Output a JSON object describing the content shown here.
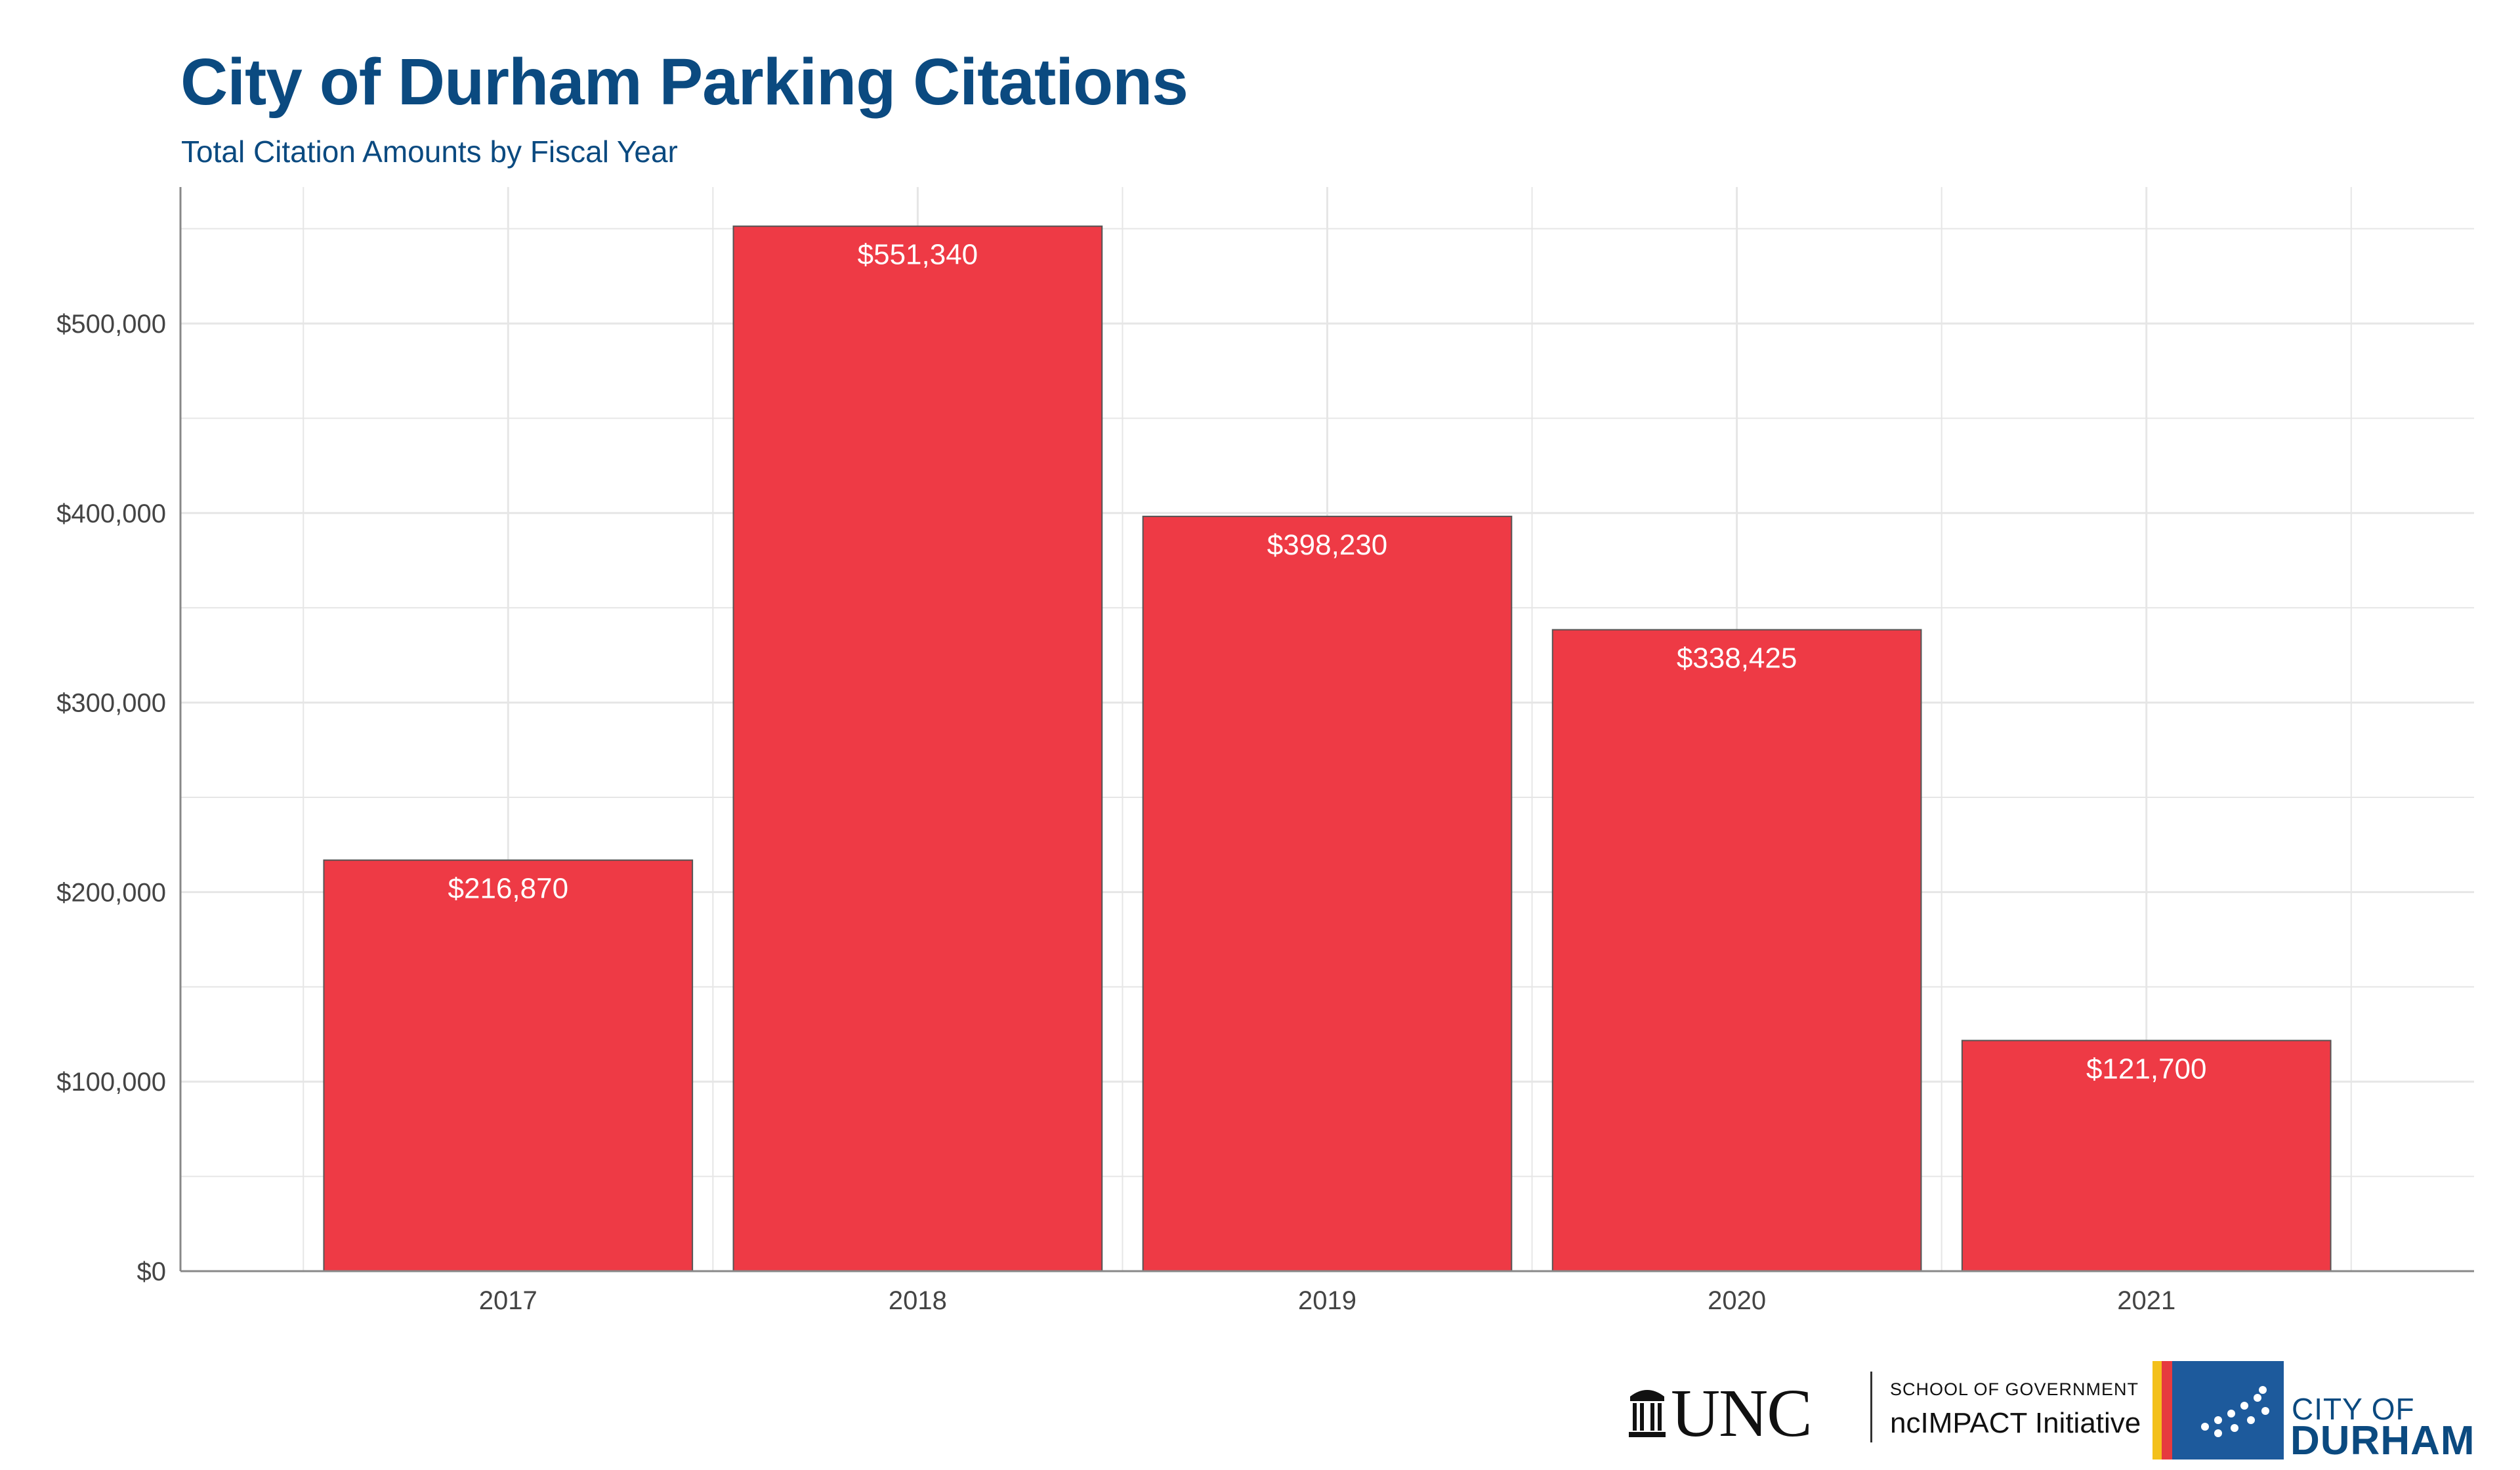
{
  "header": {
    "title": "City of Durham Parking Citations",
    "subtitle": "Total Citation Amounts by Fiscal Year"
  },
  "colors": {
    "title": "#0b4a80",
    "bar_fill": "#ee3a45",
    "bar_outline": "#555555",
    "grid": "#e6e6e6",
    "axis_text": "#444444",
    "data_label": "#ffffff"
  },
  "chart_data": {
    "type": "bar",
    "categories": [
      "2017",
      "2018",
      "2019",
      "2020",
      "2021"
    ],
    "values": [
      216870,
      551340,
      398230,
      338425,
      121700
    ],
    "data_labels": [
      "$216,870",
      "$551,340",
      "$398,230",
      "$338,425",
      "$121,700"
    ],
    "y_ticks": [
      0,
      100000,
      200000,
      300000,
      400000,
      500000
    ],
    "y_tick_labels": [
      "$0",
      "$100,000",
      "$200,000",
      "$300,000",
      "$400,000",
      "$500,000"
    ],
    "ylim": [
      0,
      572000
    ],
    "grid": true
  },
  "footer": {
    "unc_wordmark": "UNC",
    "unc_icon": "old-well-icon",
    "school_line": "SCHOOL OF GOVERNMENT",
    "initiative_line": "ncIMPACT Initiative",
    "city_line1": "CITY OF",
    "city_line2": "DURHAM",
    "durham_icon": "durham-flag-icon"
  }
}
